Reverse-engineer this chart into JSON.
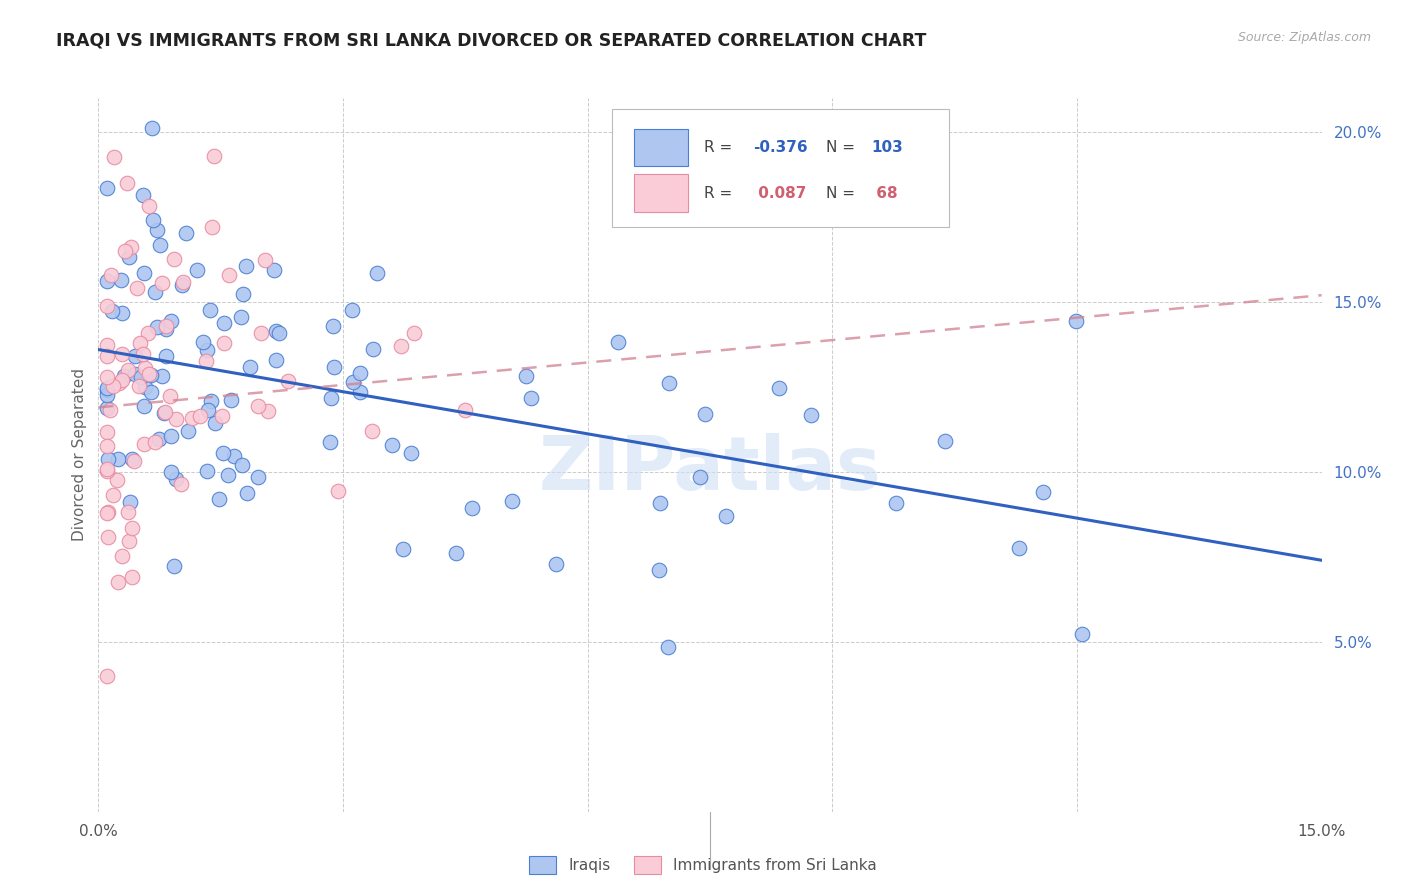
{
  "title": "IRAQI VS IMMIGRANTS FROM SRI LANKA DIVORCED OR SEPARATED CORRELATION CHART",
  "source": "Source: ZipAtlas.com",
  "ylabel": "Divorced or Separated",
  "xlim": [
    0.0,
    0.15
  ],
  "ylim": [
    0.0,
    0.21
  ],
  "x_ticks": [
    0.0,
    0.03,
    0.06,
    0.09,
    0.12,
    0.15
  ],
  "x_tick_labels": [
    "0.0%",
    "",
    "",
    "",
    "",
    "15.0%"
  ],
  "y_ticks_right": [
    0.05,
    0.1,
    0.15,
    0.2
  ],
  "y_tick_labels_right": [
    "5.0%",
    "10.0%",
    "15.0%",
    "20.0%"
  ],
  "legend_r_blue": "-0.376",
  "legend_n_blue": "103",
  "legend_r_pink": "0.087",
  "legend_n_pink": "68",
  "blue_fill": "#aec6f0",
  "pink_fill": "#f9ccd8",
  "blue_edge": "#4a7fd4",
  "pink_edge": "#e88aa0",
  "blue_line": "#3060c0",
  "pink_line": "#d08090",
  "watermark": "ZIPatlas",
  "blue_line_start_y": 0.136,
  "blue_line_end_y": 0.074,
  "pink_line_start_y": 0.119,
  "pink_line_end_y": 0.152
}
